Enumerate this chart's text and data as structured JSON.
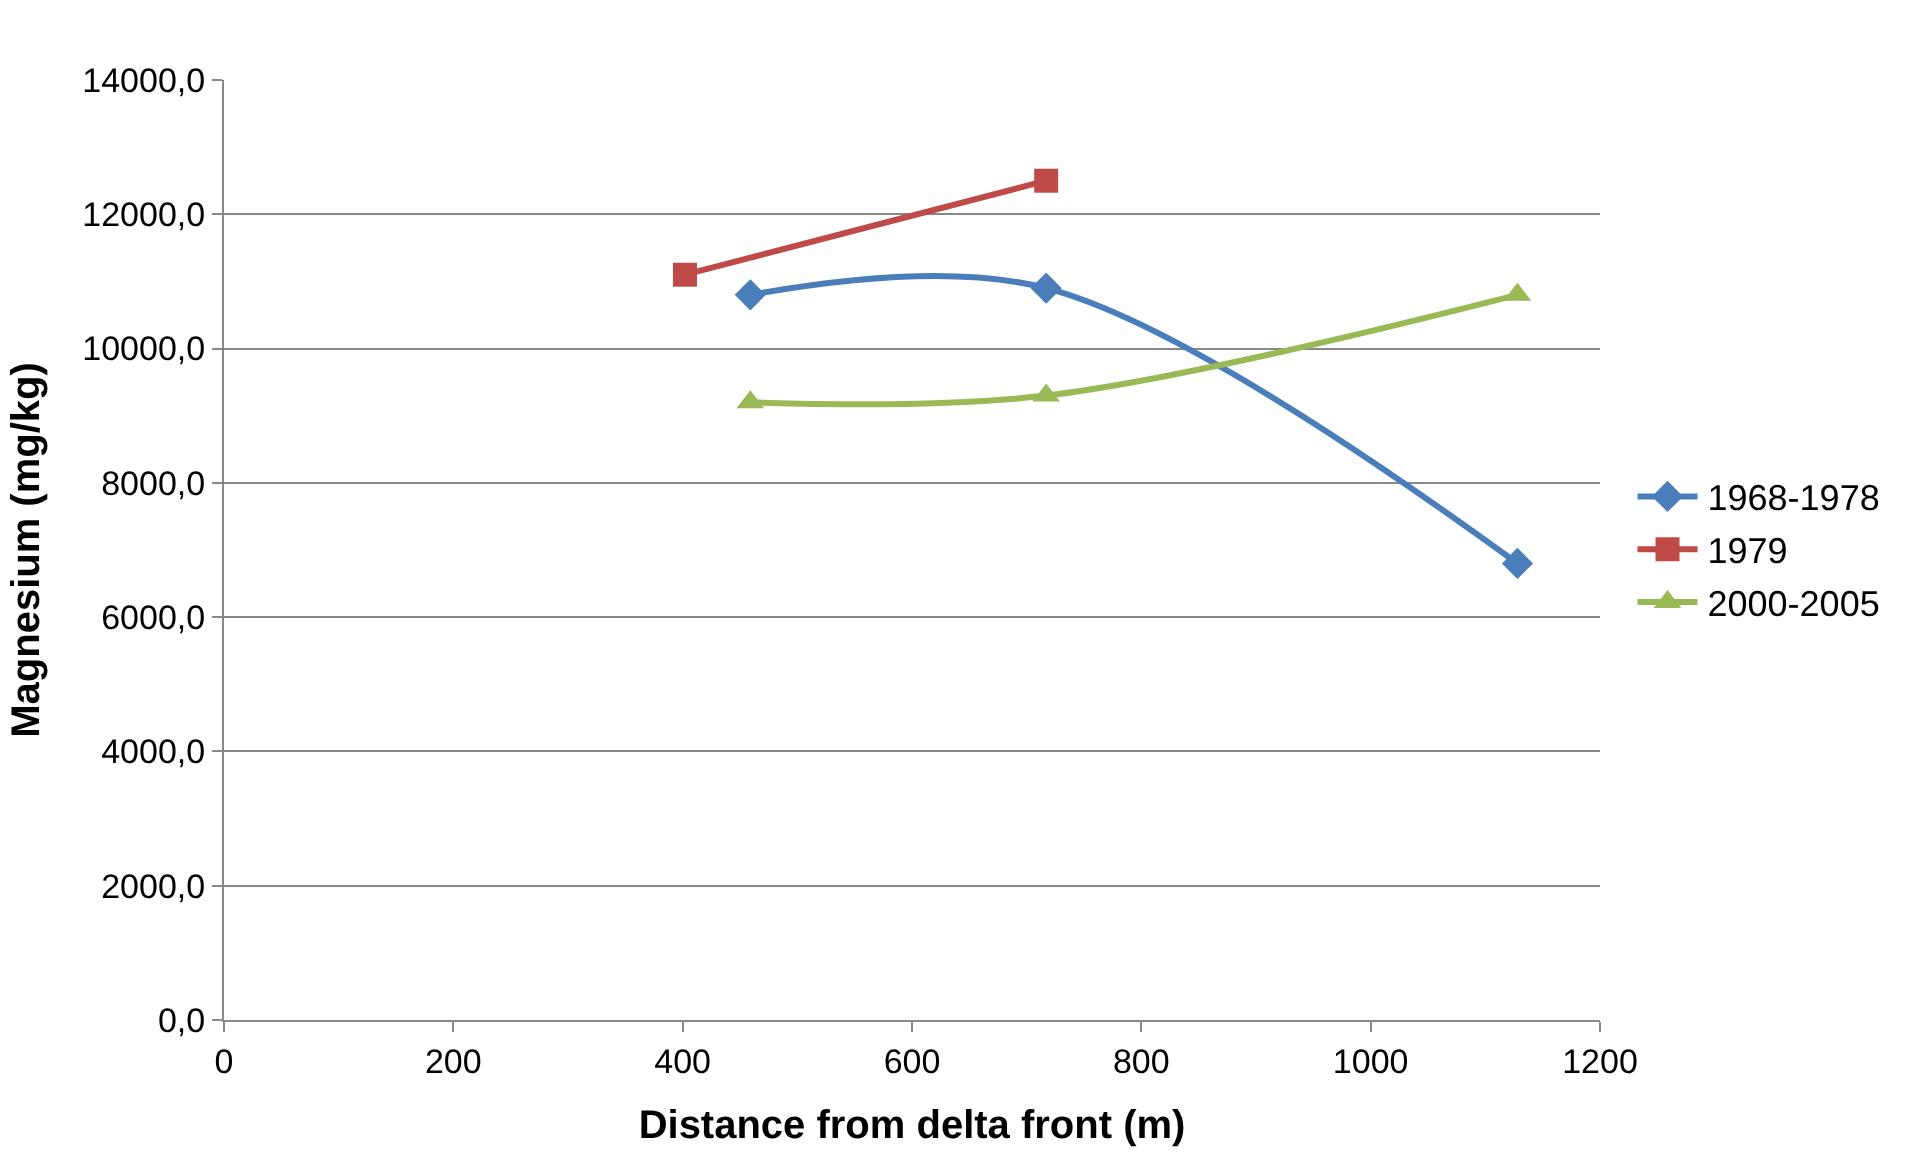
{
  "chart_data": {
    "type": "line",
    "xlabel": "Distance from delta front (m)",
    "ylabel": "Magnesium (mg/kg)",
    "xlim": [
      0,
      1200
    ],
    "xticks": [
      0,
      200,
      400,
      600,
      800,
      1000,
      1200
    ],
    "ylim": [
      0,
      14000
    ],
    "yticks": [
      {
        "value": 0,
        "label": "0,0"
      },
      {
        "value": 2000,
        "label": "2000,0"
      },
      {
        "value": 4000,
        "label": "4000,0"
      },
      {
        "value": 6000,
        "label": "6000,0"
      },
      {
        "value": 8000,
        "label": "8000,0"
      },
      {
        "value": 10000,
        "label": "10000,0"
      },
      {
        "value": 12000,
        "label": "12000,0"
      },
      {
        "value": 14000,
        "label": "14000,0"
      }
    ],
    "grid": "y",
    "legend": "right",
    "series": [
      {
        "name": "1968-1978",
        "color": "#4a7ebb",
        "marker": "diamond",
        "x": [
          459,
          717,
          1128
        ],
        "values": [
          10800,
          10900,
          6800
        ]
      },
      {
        "name": "1979",
        "color": "#be4b48",
        "marker": "square",
        "x": [
          402,
          717
        ],
        "values": [
          11100,
          12500
        ]
      },
      {
        "name": "2000-2005",
        "color": "#98b954",
        "marker": "triangle",
        "x": [
          459,
          717,
          1128
        ],
        "values": [
          9200,
          9300,
          10800
        ]
      }
    ]
  }
}
